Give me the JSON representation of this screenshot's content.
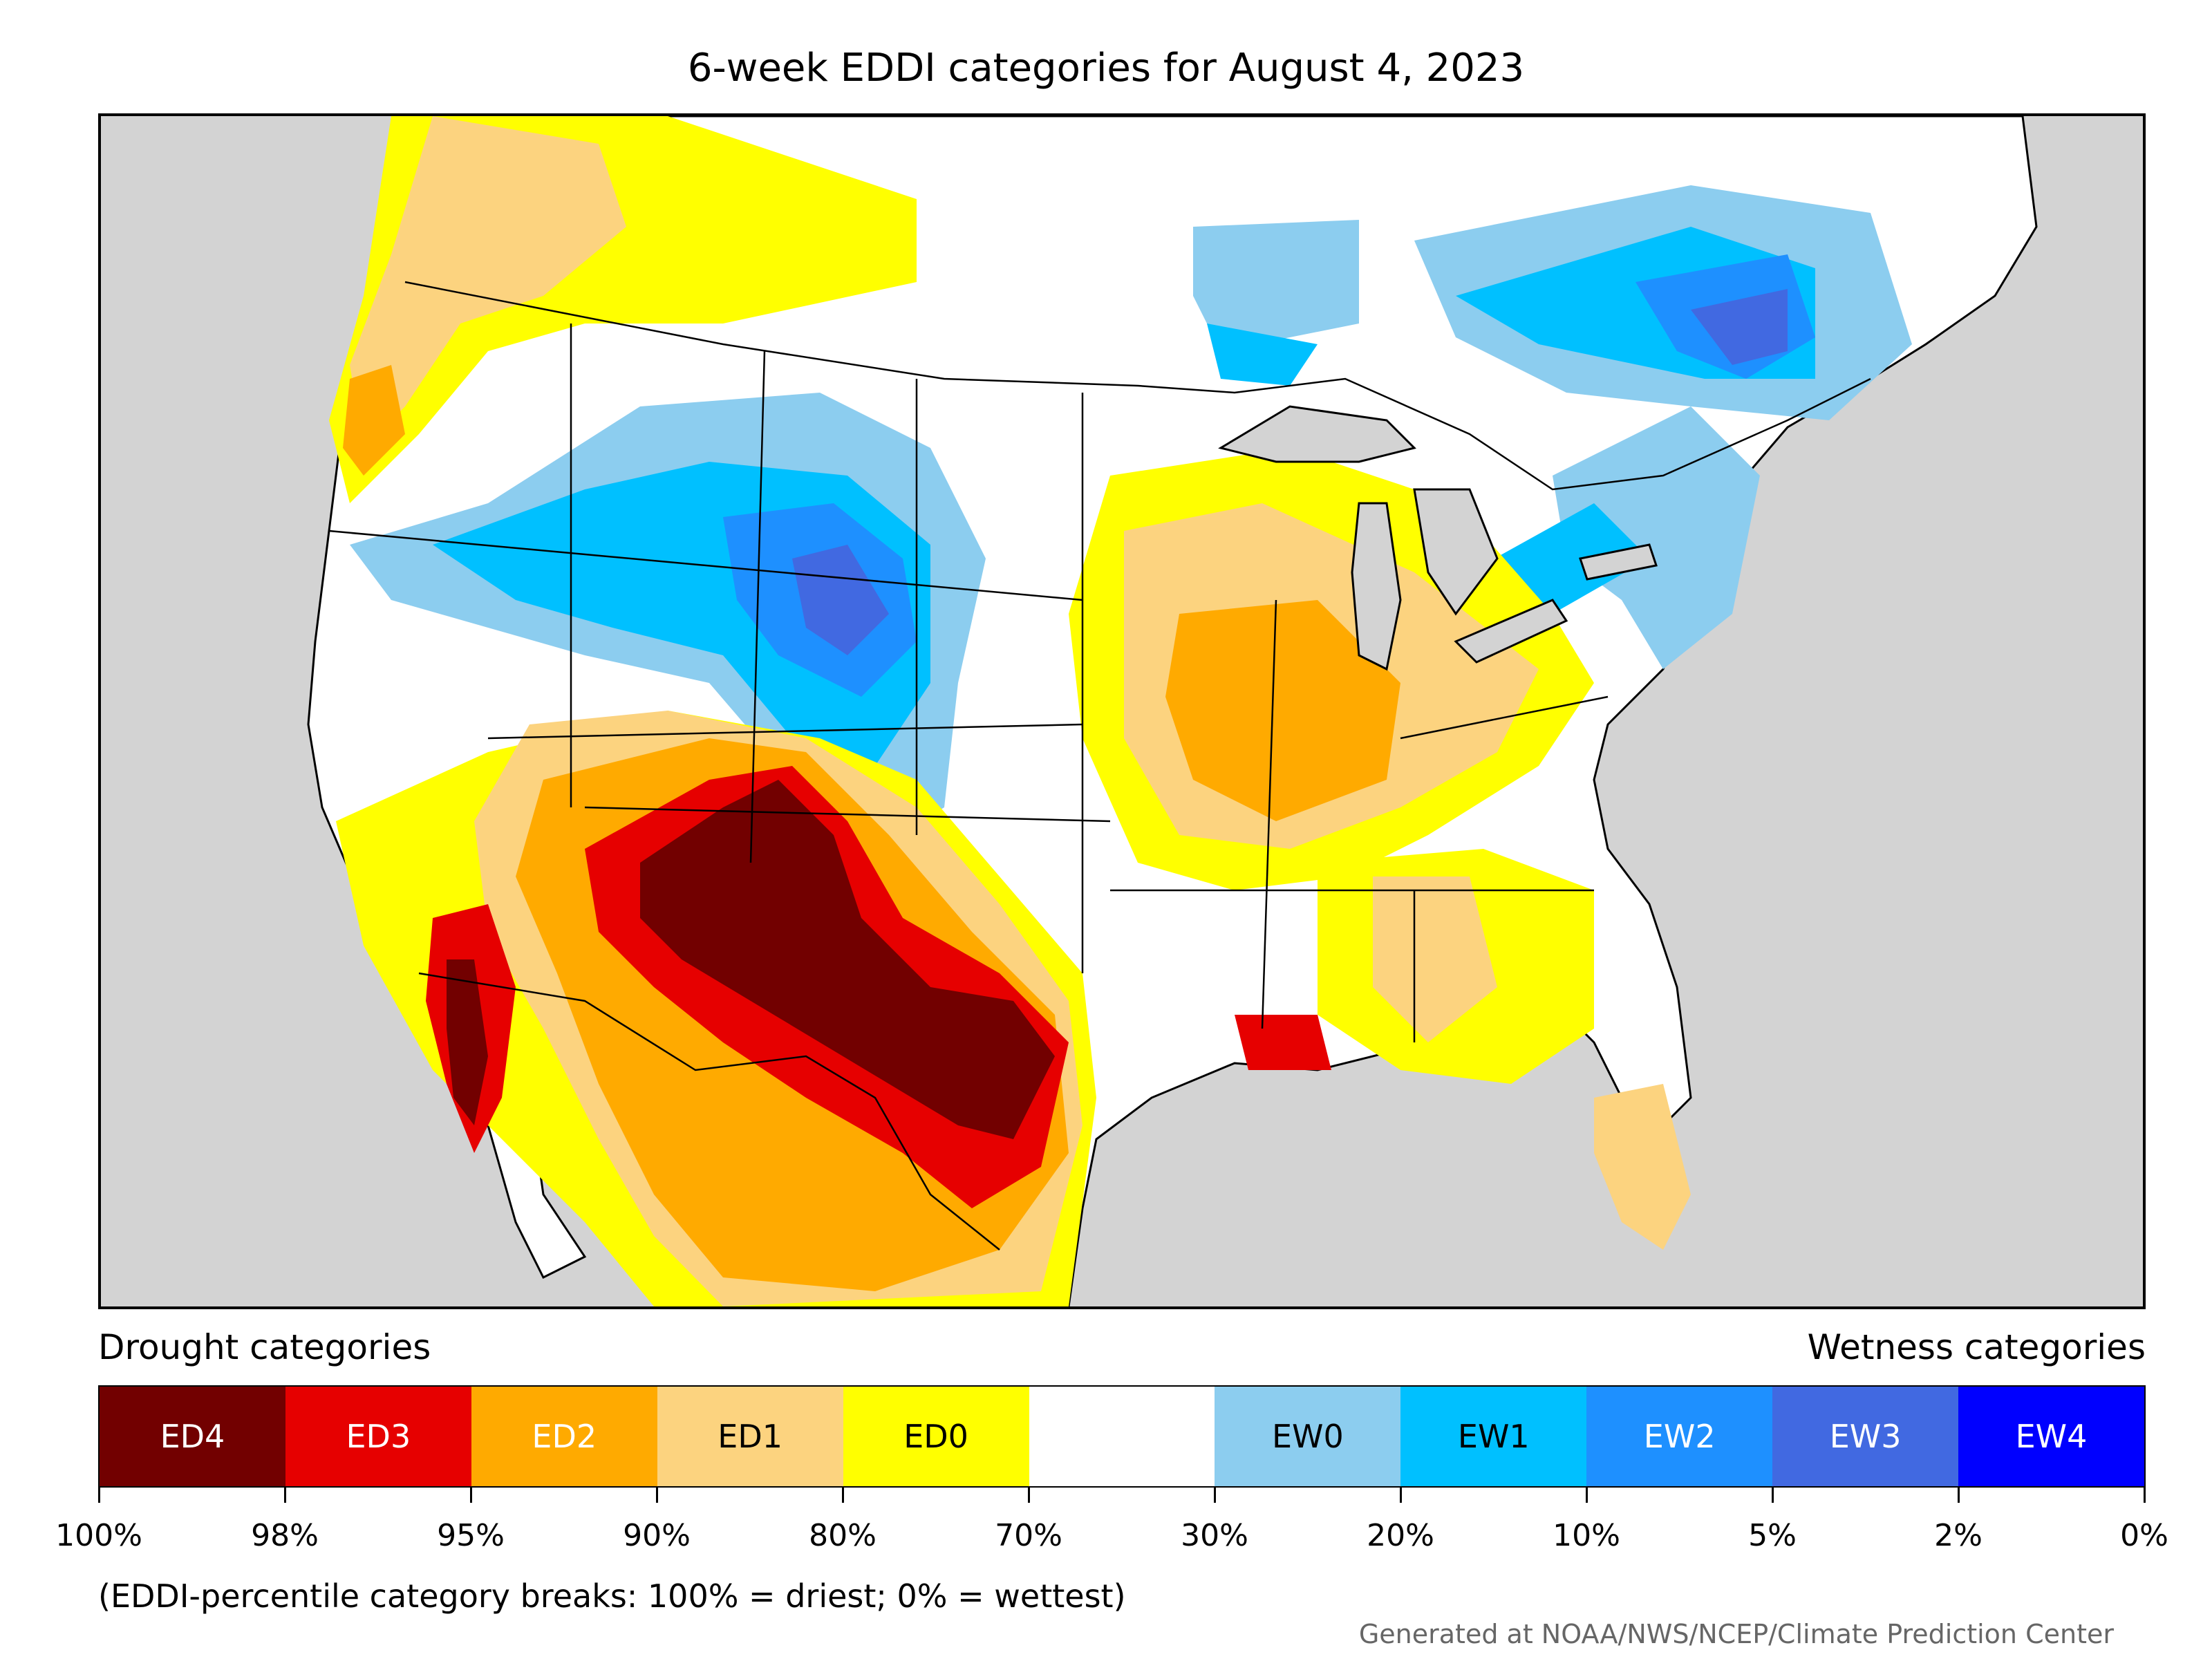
{
  "title": "6-week EDDI categories for August 4, 2023",
  "legend": {
    "left_heading": "Drought categories",
    "right_heading": "Wetness categories",
    "categories": [
      {
        "label": "ED4",
        "color": "#720000",
        "text_color": "#ffffff"
      },
      {
        "label": "ED3",
        "color": "#e60000",
        "text_color": "#ffffff"
      },
      {
        "label": "ED2",
        "color": "#ffaa00",
        "text_color": "#ffffff"
      },
      {
        "label": "ED1",
        "color": "#fcd37f",
        "text_color": "#000000"
      },
      {
        "label": "ED0",
        "color": "#ffff00",
        "text_color": "#000000"
      },
      {
        "label": "",
        "color": "#ffffff",
        "text_color": "#000000"
      },
      {
        "label": "EW0",
        "color": "#8ccdef",
        "text_color": "#000000"
      },
      {
        "label": "EW1",
        "color": "#00c0ff",
        "text_color": "#000000"
      },
      {
        "label": "EW2",
        "color": "#1e90ff",
        "text_color": "#ffffff"
      },
      {
        "label": "EW3",
        "color": "#4169e1",
        "text_color": "#ffffff"
      },
      {
        "label": "EW4",
        "color": "#0000ff",
        "text_color": "#ffffff"
      }
    ],
    "breaks": [
      "100%",
      "98%",
      "95%",
      "90%",
      "80%",
      "70%",
      "30%",
      "20%",
      "10%",
      "5%",
      "2%",
      "0%"
    ]
  },
  "note": "(EDDI-percentile category breaks: 100% = driest; 0% = wettest)",
  "credit": "Generated at NOAA/NWS/NCEP/Climate Prediction Center"
}
